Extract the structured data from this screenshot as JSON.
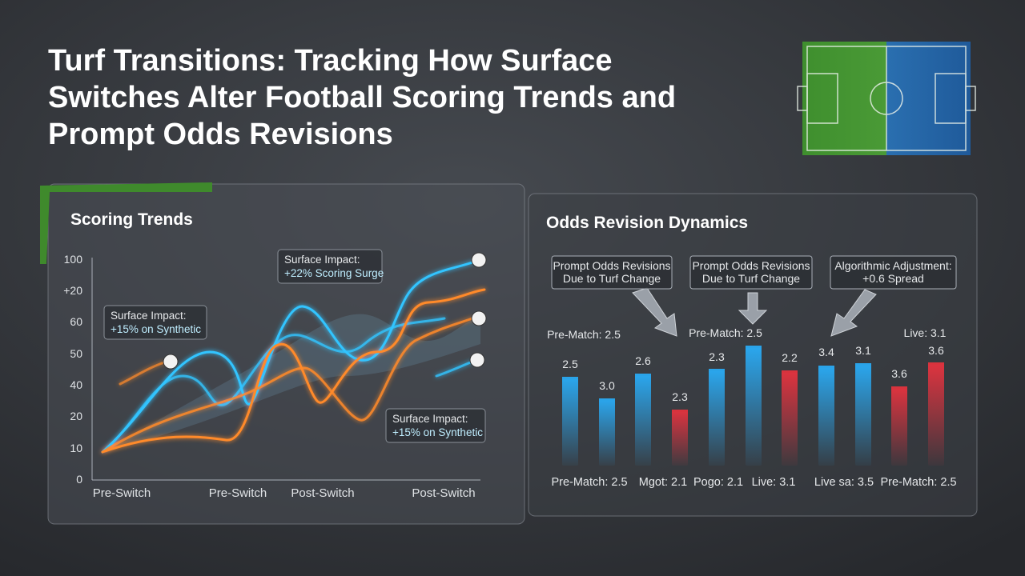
{
  "header": {
    "title_lines": [
      "Turf Transitions: Tracking How Surface",
      "Switches Alter Football Scoring Trends and",
      "Prompt Odds Revisions"
    ]
  },
  "left_panel": {
    "title": "Scoring Trends",
    "y_labels": [
      "100",
      "+20",
      "60",
      "50",
      "40",
      "20",
      "10",
      "0"
    ],
    "x_labels": [
      "Pre-Switch",
      "Pre-Switch",
      "Post-Switch",
      "Post-Switch"
    ],
    "callouts": [
      {
        "title": "Surface Impact:",
        "detail": "+15% on Synthetic"
      },
      {
        "title": "Surface Impact:",
        "detail": "+22% Scoring Surge"
      },
      {
        "title": "Surface Impact:",
        "detail": "+15% on Synthetic"
      }
    ]
  },
  "right_panel": {
    "title": "Odds Revision Dynamics",
    "callouts": [
      {
        "lines": [
          "Prompt Odds Revisions",
          "Due to Turf Change"
        ]
      },
      {
        "lines": [
          "Prompt Odds Revisions",
          "Due to Turf Change"
        ]
      },
      {
        "lines": [
          "Algorithmic Adjustment:",
          "+0.6 Spread"
        ]
      }
    ],
    "notes": [
      "Pre-Match: 2.5",
      "Pre-Match: 2.5",
      "Live: 3.1"
    ],
    "bar_labels": [
      "2.5",
      "3.0",
      "2.6",
      "2.3",
      "2.3",
      null,
      "2.2",
      "3.4",
      "3.1",
      "3.6",
      "3.6"
    ],
    "bar_colors": [
      "#2aa3e8",
      "#2aa3e8",
      "#2aa3e8",
      "#d8333d",
      "#2aa3e8",
      "#2aa3e8",
      "#d8333d",
      "#2aa3e8",
      "#2aa3e8",
      "#d8333d",
      "#d8333d"
    ],
    "x_labels": [
      "Pre-Match: 2.5",
      "Mgot: 2.1",
      "Pogo: 2.1",
      "Live: 3.1",
      "Live sa: 3.5",
      "Pre-Match: 2.5"
    ]
  }
}
